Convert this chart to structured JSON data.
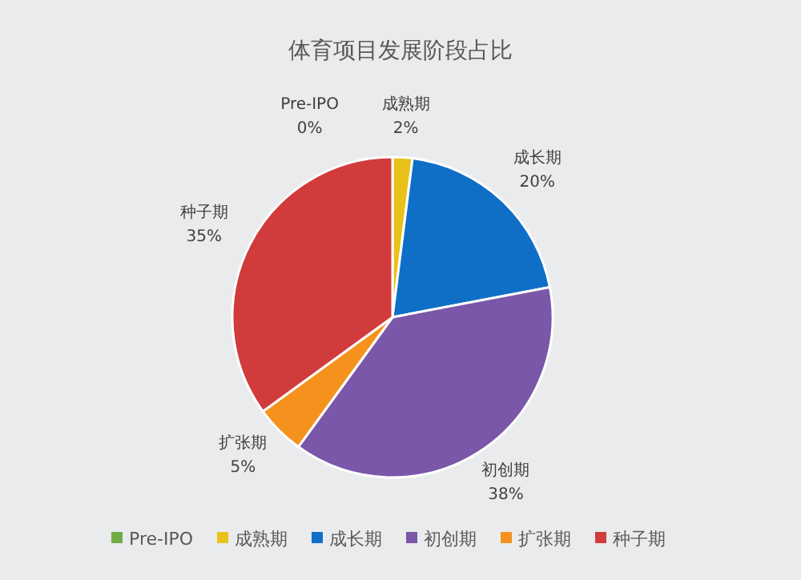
{
  "chart_data": {
    "type": "pie",
    "title": "体育项目发展阶段占比",
    "categories": [
      "Pre-IPO",
      "成熟期",
      "成长期",
      "初创期",
      "扩张期",
      "种子期"
    ],
    "values": [
      0,
      2,
      20,
      38,
      5,
      35
    ],
    "value_labels": [
      "0%",
      "2%",
      "20%",
      "38%",
      "5%",
      "35%"
    ],
    "colors": [
      "#70ad47",
      "#e8c21b",
      "#0f6fc6",
      "#7a57a8",
      "#f5921e",
      "#d13b3b"
    ],
    "legend": "bottom"
  }
}
